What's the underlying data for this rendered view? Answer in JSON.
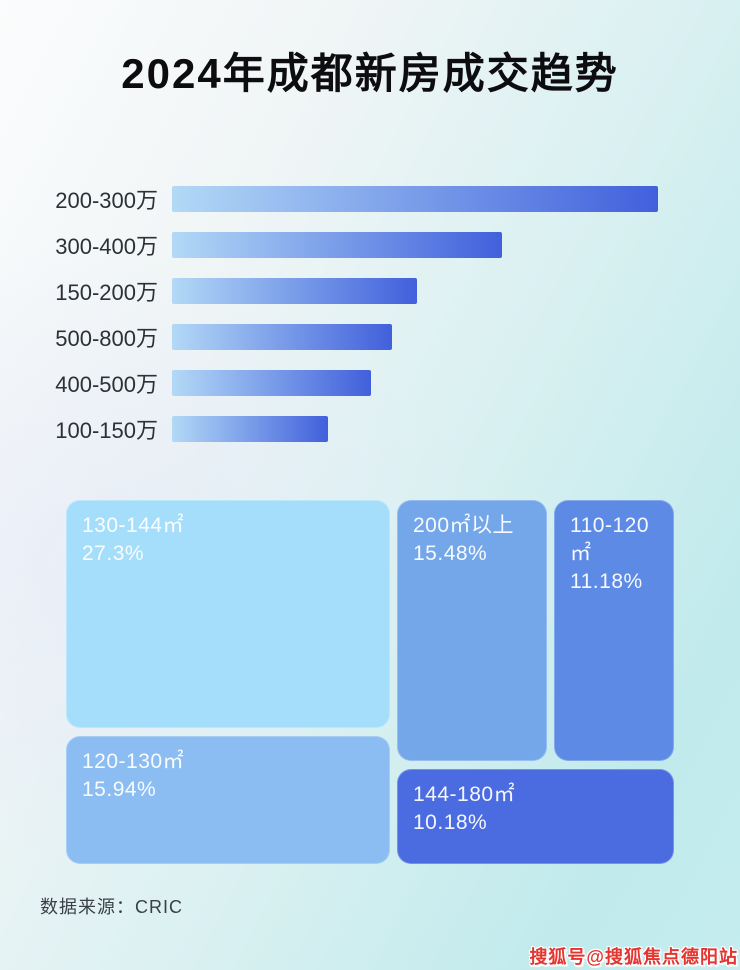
{
  "page": {
    "title": "2024年成都新房成交趋势",
    "source_label": "数据来源：CRIC",
    "watermark": "搜狐号@搜狐焦点德阳站"
  },
  "colors": {
    "background_top_left": "#fafbfc",
    "background_bottom_right": "#bfeaec",
    "bar_gradient_from": "#b3d9f6",
    "bar_gradient_to": "#4160dc",
    "title_text": "#0d0d10",
    "bar_label_text": "#2c3136",
    "source_text": "#3b4046",
    "watermark_red": "#e43530",
    "treemap_text": "#ffffff"
  },
  "chart_data": [
    {
      "type": "bar",
      "orientation": "horizontal",
      "title": "2024年成都新房成交趋势",
      "categories": [
        "200-300万",
        "300-400万",
        "150-200万",
        "500-800万",
        "400-500万",
        "100-150万"
      ],
      "values_pct_of_max": [
        100,
        68,
        50.5,
        45.3,
        41,
        32
      ],
      "value_labels_shown": false,
      "note": "no numeric axis or data labels in image; values estimated as percent of longest bar",
      "bar_style": "left-to-right gradient, light blue to royal blue"
    },
    {
      "type": "treemap",
      "items": [
        {
          "label": "130-144㎡",
          "percent": 27.3,
          "percent_label": "27.3%",
          "color": "#a4defb"
        },
        {
          "label": "200㎡以上",
          "percent": 15.48,
          "percent_label": "15.48%",
          "color": "#74a6ea"
        },
        {
          "label": "110-120㎡",
          "percent": 11.18,
          "percent_label": "11.18%",
          "color": "#5d8ae4"
        },
        {
          "label": "120-130㎡",
          "percent": 15.94,
          "percent_label": "15.94%",
          "color": "#8bbdf2"
        },
        {
          "label": "144-180㎡",
          "percent": 10.18,
          "percent_label": "10.18%",
          "color": "#4a6ce0"
        }
      ],
      "legend": "none",
      "value_format": "percent of transactions"
    }
  ]
}
